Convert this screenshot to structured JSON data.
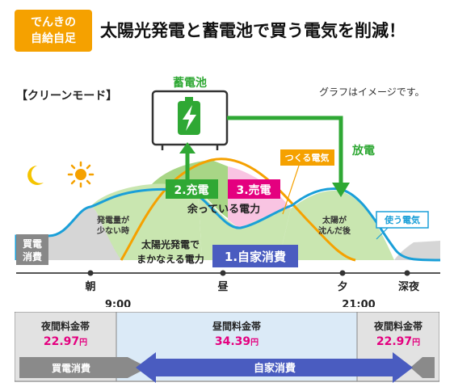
{
  "header": {
    "badge_line1": "でんきの",
    "badge_line2": "自給自足",
    "title": "太陽光発電と蓄電池で買う電気を削減！"
  },
  "diagram": {
    "mode": "【クリーンモード】",
    "note": "グラフはイメージです。",
    "battery_label": "蓄電池",
    "discharge_label": "放電",
    "charge_label": "2.充電",
    "sell_label": "3.売電",
    "surplus_label": "余っている電力",
    "generate_label": "つくる電気",
    "use_label": "使う電気",
    "self_use_label": "1.自家消費",
    "solar_cover_line1": "太陽光発電で",
    "solar_cover_line2": "まかなえる電力",
    "low_gen_line1": "発電量が",
    "low_gen_line2": "少ない時",
    "sunset_line1": "太陽が",
    "sunset_line2": "沈んだ後",
    "buy_line1": "買電",
    "buy_line2": "消費",
    "time_morning": "朝",
    "time_noon": "昼",
    "time_evening": "夕",
    "time_night": "深夜",
    "time_start": "9:00",
    "time_end": "21:00",
    "colors": {
      "accent_orange": "#f5a100",
      "battery_green": "#2fa834",
      "sell_pink": "#e4007f",
      "self_use_blue": "#4a5cc0",
      "use_curve_blue": "#1a9fd8",
      "buy_gray": "#888888"
    }
  },
  "rates": {
    "night_label": "夜間料金帯",
    "night_price": "22.97",
    "day_label": "昼間料金帯",
    "day_price": "34.39",
    "night2_label": "夜間料金帯",
    "night2_price": "22.97",
    "unit": "円",
    "buy_arrow": "買電消費",
    "self_arrow": "自家消費"
  }
}
